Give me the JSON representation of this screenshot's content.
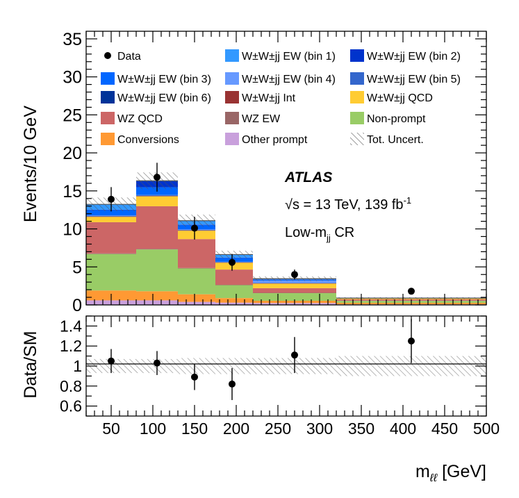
{
  "chart_data": [
    {
      "type": "bar",
      "stacked": true,
      "x_bin_edges": [
        20,
        80,
        130,
        175,
        220,
        320,
        500
      ],
      "xlim": [
        20,
        500
      ],
      "ylim": [
        0,
        36
      ],
      "ylabel": "Events/10 GeV",
      "yticks": [
        "0",
        "5",
        "10",
        "15",
        "20",
        "25",
        "30",
        "35"
      ],
      "xticks": [
        "50",
        "100",
        "150",
        "200",
        "250",
        "300",
        "350",
        "400",
        "450",
        "500"
      ],
      "series": [
        {
          "key": "other",
          "name": "Other prompt",
          "color": "#c9a0dc",
          "values": [
            0.6,
            0.6,
            0.4,
            0.3,
            0.25,
            0.08
          ]
        },
        {
          "key": "conv",
          "name": "Conversions",
          "color": "#ff9933",
          "values": [
            1.3,
            1.2,
            1.0,
            0.6,
            0.3,
            0.2
          ]
        },
        {
          "key": "np",
          "name": "Non-prompt",
          "color": "#99cc66",
          "values": [
            4.8,
            5.5,
            3.4,
            1.7,
            1.0,
            0.25
          ]
        },
        {
          "key": "wzew",
          "name": "WZ EW",
          "color": "#996666",
          "values": [
            0.08,
            0.08,
            0.06,
            0.05,
            0.05,
            0.03
          ]
        },
        {
          "key": "wzqcd",
          "name": "WZ QCD",
          "color": "#cc6666",
          "values": [
            4.1,
            5.6,
            3.8,
            2.0,
            0.6,
            0.17
          ]
        },
        {
          "key": "qcd",
          "name": "W±W±jj QCD",
          "color": "#ffcc33",
          "values": [
            0.7,
            1.3,
            1.1,
            0.9,
            0.6,
            0.1
          ]
        },
        {
          "key": "int",
          "name": "W±W±jj Int",
          "color": "#993333",
          "values": [
            0.05,
            0.05,
            0.05,
            0.04,
            0.04,
            0.01
          ]
        },
        {
          "key": "b6",
          "name": "W±W±jj EW (bin 6)",
          "color": "#003399",
          "values": [
            0.05,
            0.05,
            0.04,
            0.03,
            0.03,
            0.01
          ]
        },
        {
          "key": "b5",
          "name": "W±W±jj EW (bin 5)",
          "color": "#3366cc",
          "values": [
            0.05,
            0.05,
            0.04,
            0.03,
            0.03,
            0.01
          ]
        },
        {
          "key": "b4",
          "name": "W±W±jj EW (bin 4)",
          "color": "#6699ff",
          "values": [
            0.05,
            0.05,
            0.04,
            0.03,
            0.3,
            0.01
          ]
        },
        {
          "key": "b3",
          "name": "W±W±jj EW (bin 3)",
          "color": "#0066ff",
          "values": [
            0.7,
            1.0,
            0.6,
            0.5,
            0.1,
            0.01
          ]
        },
        {
          "key": "b2",
          "name": "W±W±jj EW (bin 2)",
          "color": "#0033cc",
          "values": [
            0.05,
            0.8,
            0.05,
            0.05,
            0.05,
            0.01
          ]
        },
        {
          "key": "b1",
          "name": "W±W±jj EW (bin 1)",
          "color": "#3399ff",
          "values": [
            0.7,
            0.05,
            0.5,
            0.4,
            0.1,
            0.01
          ]
        }
      ],
      "data_points": [
        {
          "x": 50,
          "y": 13.9,
          "err": 1.6
        },
        {
          "x": 105,
          "y": 16.8,
          "err": 1.9
        },
        {
          "x": 150,
          "y": 10.1,
          "err": 1.5
        },
        {
          "x": 195,
          "y": 5.6,
          "err": 1.1
        },
        {
          "x": 270,
          "y": 4.0,
          "err": 0.65
        },
        {
          "x": 410,
          "y": 1.8,
          "err": 0.3
        }
      ],
      "total_uncertainty": [
        0.9,
        1.1,
        0.8,
        0.5,
        0.3,
        0.12
      ],
      "legend": {
        "rows": [
          [
            {
              "label": "Data",
              "kind": "marker"
            },
            {
              "label": "W±W±jj EW (bin 1)",
              "key": "b1"
            },
            {
              "label": "W±W±jj EW (bin 2)",
              "key": "b2"
            }
          ],
          [
            {
              "label": "W±W±jj EW (bin 3)",
              "key": "b3"
            },
            {
              "label": "W±W±jj EW (bin 4)",
              "key": "b4"
            },
            {
              "label": "W±W±jj EW (bin 5)",
              "key": "b5"
            }
          ],
          [
            {
              "label": "W±W±jj EW (bin 6)",
              "key": "b6"
            },
            {
              "label": "W±W±jj Int",
              "key": "int"
            },
            {
              "label": "W±W±jj QCD",
              "key": "qcd"
            }
          ],
          [
            {
              "label": "WZ QCD",
              "key": "wzqcd"
            },
            {
              "label": "WZ EW",
              "key": "wzew"
            },
            {
              "label": "Non-prompt",
              "key": "np"
            }
          ],
          [
            {
              "label": "Conversions",
              "key": "conv"
            },
            {
              "label": "Other prompt",
              "key": "other"
            },
            {
              "label": "Tot. Uncert.",
              "kind": "hatch"
            }
          ]
        ]
      },
      "annotations": {
        "experiment": "ATLAS",
        "energy": "√s = 13 TeV, 139 fb",
        "energy_sup": "-1",
        "region": "Low-m",
        "region_sub": "jj",
        "region_suffix": " CR"
      }
    },
    {
      "type": "scatter",
      "ylabel": "Data/SM",
      "xlabel_main": "m",
      "xlabel_sub": "ℓℓ",
      "xlabel_unit": " [GeV]",
      "xlim": [
        20,
        500
      ],
      "ylim": [
        0.5,
        1.5
      ],
      "yticks": [
        "0.6",
        "0.8",
        "1",
        "1.2",
        "1.4"
      ],
      "xticks": [
        "50",
        "100",
        "150",
        "200",
        "250",
        "300",
        "350",
        "400",
        "450",
        "500"
      ],
      "reference_line": 1.0,
      "points": [
        {
          "x": 50,
          "y": 1.05,
          "err": 0.12
        },
        {
          "x": 105,
          "y": 1.03,
          "err": 0.12
        },
        {
          "x": 150,
          "y": 0.89,
          "err": 0.13
        },
        {
          "x": 195,
          "y": 0.82,
          "err": 0.16
        },
        {
          "x": 270,
          "y": 1.11,
          "err": 0.18
        },
        {
          "x": 410,
          "y": 1.25,
          "err": 0.22
        }
      ],
      "uncertainty_band": [
        0.07,
        0.07,
        0.08,
        0.08,
        0.08,
        0.1
      ]
    }
  ]
}
